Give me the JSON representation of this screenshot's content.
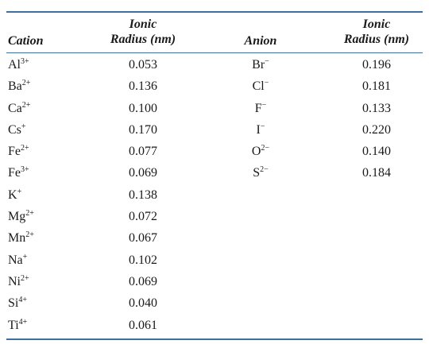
{
  "headers": {
    "cation": "Cation",
    "cation_radius_line1": "Ionic",
    "cation_radius_line2": "Radius (nm)",
    "anion": "Anion",
    "anion_radius_line1": "Ionic",
    "anion_radius_line2": "Radius (nm)"
  },
  "cations": [
    {
      "symbol": "Al",
      "charge": "3+",
      "radius": "0.053"
    },
    {
      "symbol": "Ba",
      "charge": "2+",
      "radius": "0.136"
    },
    {
      "symbol": "Ca",
      "charge": "2+",
      "radius": "0.100"
    },
    {
      "symbol": "Cs",
      "charge": "+",
      "radius": "0.170"
    },
    {
      "symbol": "Fe",
      "charge": "2+",
      "radius": "0.077"
    },
    {
      "symbol": "Fe",
      "charge": "3+",
      "radius": "0.069"
    },
    {
      "symbol": "K",
      "charge": "+",
      "radius": "0.138"
    },
    {
      "symbol": "Mg",
      "charge": "2+",
      "radius": "0.072"
    },
    {
      "symbol": "Mn",
      "charge": "2+",
      "radius": "0.067"
    },
    {
      "symbol": "Na",
      "charge": "+",
      "radius": "0.102"
    },
    {
      "symbol": "Ni",
      "charge": "2+",
      "radius": "0.069"
    },
    {
      "symbol": "Si",
      "charge": "4+",
      "radius": "0.040"
    },
    {
      "symbol": "Ti",
      "charge": "4+",
      "radius": "0.061"
    }
  ],
  "anions": [
    {
      "symbol": "Br",
      "charge": "−",
      "radius": "0.196"
    },
    {
      "symbol": "Cl",
      "charge": "−",
      "radius": "0.181"
    },
    {
      "symbol": "F",
      "charge": "−",
      "radius": "0.133"
    },
    {
      "symbol": "I",
      "charge": "−",
      "radius": "0.220"
    },
    {
      "symbol": "O",
      "charge": "2−",
      "radius": "0.140"
    },
    {
      "symbol": "S",
      "charge": "2−",
      "radius": "0.184"
    }
  ],
  "colors": {
    "rule": "#3f6f9f",
    "text": "#1a1a1a"
  }
}
